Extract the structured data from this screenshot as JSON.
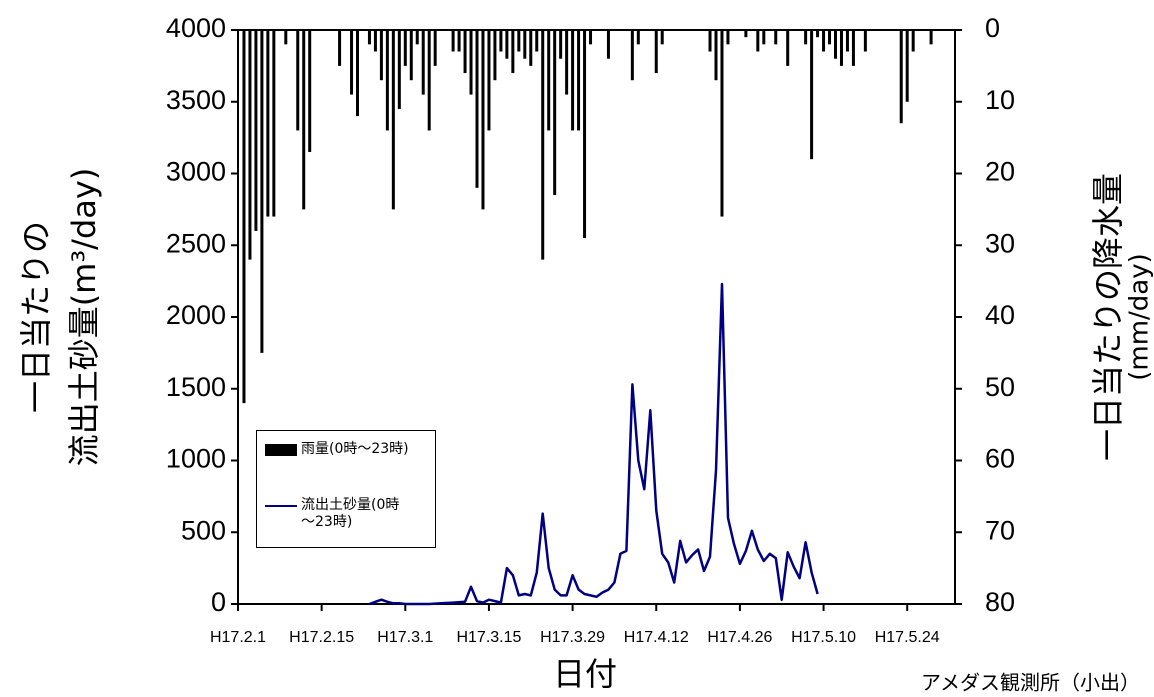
{
  "chart_data": {
    "type": "bar_line",
    "x_label": "日付",
    "y_label": [
      "一日当たりの",
      "流出土砂量(m³/day)"
    ],
    "y2_label": [
      "一日当たりの降水量",
      "(mm/day)"
    ],
    "note": "アメダス観測所（小出）",
    "xlim": [
      0,
      120
    ],
    "xticks": [
      {
        "value": 0,
        "label": "H17.2.1"
      },
      {
        "value": 14,
        "label": "H17.2.15"
      },
      {
        "value": 28,
        "label": "H17.3.1"
      },
      {
        "value": 42,
        "label": "H17.3.15"
      },
      {
        "value": 56,
        "label": "H17.3.29"
      },
      {
        "value": 70,
        "label": "H17.4.12"
      },
      {
        "value": 84,
        "label": "H17.4.26"
      },
      {
        "value": 98,
        "label": "H17.5.10"
      },
      {
        "value": 112,
        "label": "H17.5.24"
      }
    ],
    "ylim": [
      0,
      4000
    ],
    "yticks": [
      0,
      500,
      1000,
      1500,
      2000,
      2500,
      3000,
      3500,
      4000
    ],
    "y2lim": [
      0,
      80
    ],
    "y2ticks": [
      0,
      10,
      20,
      30,
      40,
      50,
      60,
      70,
      80
    ],
    "y2_inverted": true,
    "series": [
      {
        "name": "雨量(0時～23時)",
        "type": "bar",
        "axis": "y2",
        "color": "#000000",
        "x": [
          1,
          2,
          3,
          4,
          5,
          6,
          8,
          10,
          11,
          12,
          17,
          19,
          20,
          22,
          23,
          24,
          25,
          26,
          27,
          28,
          29,
          30,
          31,
          32,
          33,
          36,
          37,
          38,
          39,
          40,
          41,
          42,
          43,
          44,
          45,
          46,
          47,
          48,
          49,
          50,
          51,
          52,
          53,
          54,
          55,
          56,
          57,
          58,
          59,
          62,
          66,
          67,
          70,
          71,
          79,
          80,
          81,
          82,
          85,
          87,
          88,
          90,
          92,
          95,
          96,
          97,
          98,
          99,
          100,
          101,
          102,
          103,
          105,
          111,
          112,
          113,
          116
        ],
        "values": [
          52,
          32,
          28,
          45,
          26,
          26,
          2,
          14,
          25,
          17,
          5,
          9,
          12,
          2,
          3,
          7,
          14,
          25,
          11,
          5,
          7,
          2,
          9,
          14,
          5,
          3,
          3,
          6,
          9,
          22,
          25,
          14,
          7,
          3,
          4,
          6,
          3,
          4,
          5,
          3,
          32,
          14,
          23,
          4,
          9,
          14,
          14,
          29,
          2,
          4,
          7,
          2,
          6,
          2,
          3,
          7,
          26,
          2,
          1,
          3,
          2,
          2,
          5,
          2,
          18,
          1,
          3,
          2,
          4,
          5,
          3,
          5,
          3,
          13,
          10,
          3,
          2
        ]
      },
      {
        "name": "流出土砂量(0時～23時)",
        "type": "line",
        "axis": "y",
        "color": "#000080",
        "x": [
          22,
          23,
          24,
          25,
          26,
          27,
          28,
          30,
          32,
          34,
          36,
          38,
          39,
          40,
          41,
          42,
          43,
          44,
          45,
          46,
          47,
          48,
          49,
          50,
          51,
          52,
          53,
          54,
          55,
          56,
          57,
          58,
          59,
          60,
          61,
          62,
          63,
          64,
          65,
          66,
          67,
          68,
          69,
          70,
          71,
          72,
          73,
          74,
          75,
          76,
          77,
          78,
          79,
          80,
          81,
          82,
          83,
          84,
          85,
          86,
          87,
          88,
          89,
          90,
          91,
          92,
          93,
          94,
          95,
          96,
          97
        ],
        "values": [
          0,
          15,
          30,
          15,
          5,
          5,
          0,
          0,
          0,
          5,
          10,
          15,
          120,
          20,
          10,
          30,
          20,
          10,
          250,
          200,
          60,
          70,
          60,
          220,
          630,
          250,
          100,
          60,
          60,
          200,
          100,
          70,
          60,
          50,
          80,
          100,
          150,
          350,
          370,
          1530,
          1000,
          800,
          1350,
          650,
          350,
          290,
          150,
          440,
          290,
          340,
          380,
          230,
          330,
          930,
          2230,
          600,
          420,
          280,
          370,
          510,
          380,
          300,
          350,
          320,
          30,
          360,
          260,
          180,
          430,
          220,
          70
        ]
      }
    ]
  }
}
